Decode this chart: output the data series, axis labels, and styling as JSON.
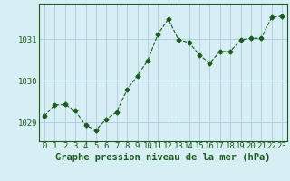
{
  "x": [
    0,
    1,
    2,
    3,
    4,
    5,
    6,
    7,
    8,
    9,
    10,
    11,
    12,
    13,
    14,
    15,
    16,
    17,
    18,
    19,
    20,
    21,
    22,
    23
  ],
  "y": [
    1029.15,
    1029.42,
    1029.43,
    1029.28,
    1028.93,
    1028.82,
    1029.08,
    1029.25,
    1029.78,
    1030.12,
    1030.48,
    1031.12,
    1031.48,
    1030.98,
    1030.92,
    1030.62,
    1030.42,
    1030.7,
    1030.7,
    1030.98,
    1031.02,
    1031.02,
    1031.52,
    1031.55
  ],
  "line_color": "#1a5c1a",
  "marker": "D",
  "marker_size": 2.5,
  "background_color": "#d7eef5",
  "grid_color": "#aaccdd",
  "xlabel": "Graphe pression niveau de la mer (hPa)",
  "xlabel_fontsize": 7.5,
  "tick_fontsize": 6.5,
  "yticks": [
    1029,
    1030,
    1031
  ],
  "ylim": [
    1028.55,
    1031.85
  ],
  "xlim": [
    -0.5,
    23.5
  ]
}
